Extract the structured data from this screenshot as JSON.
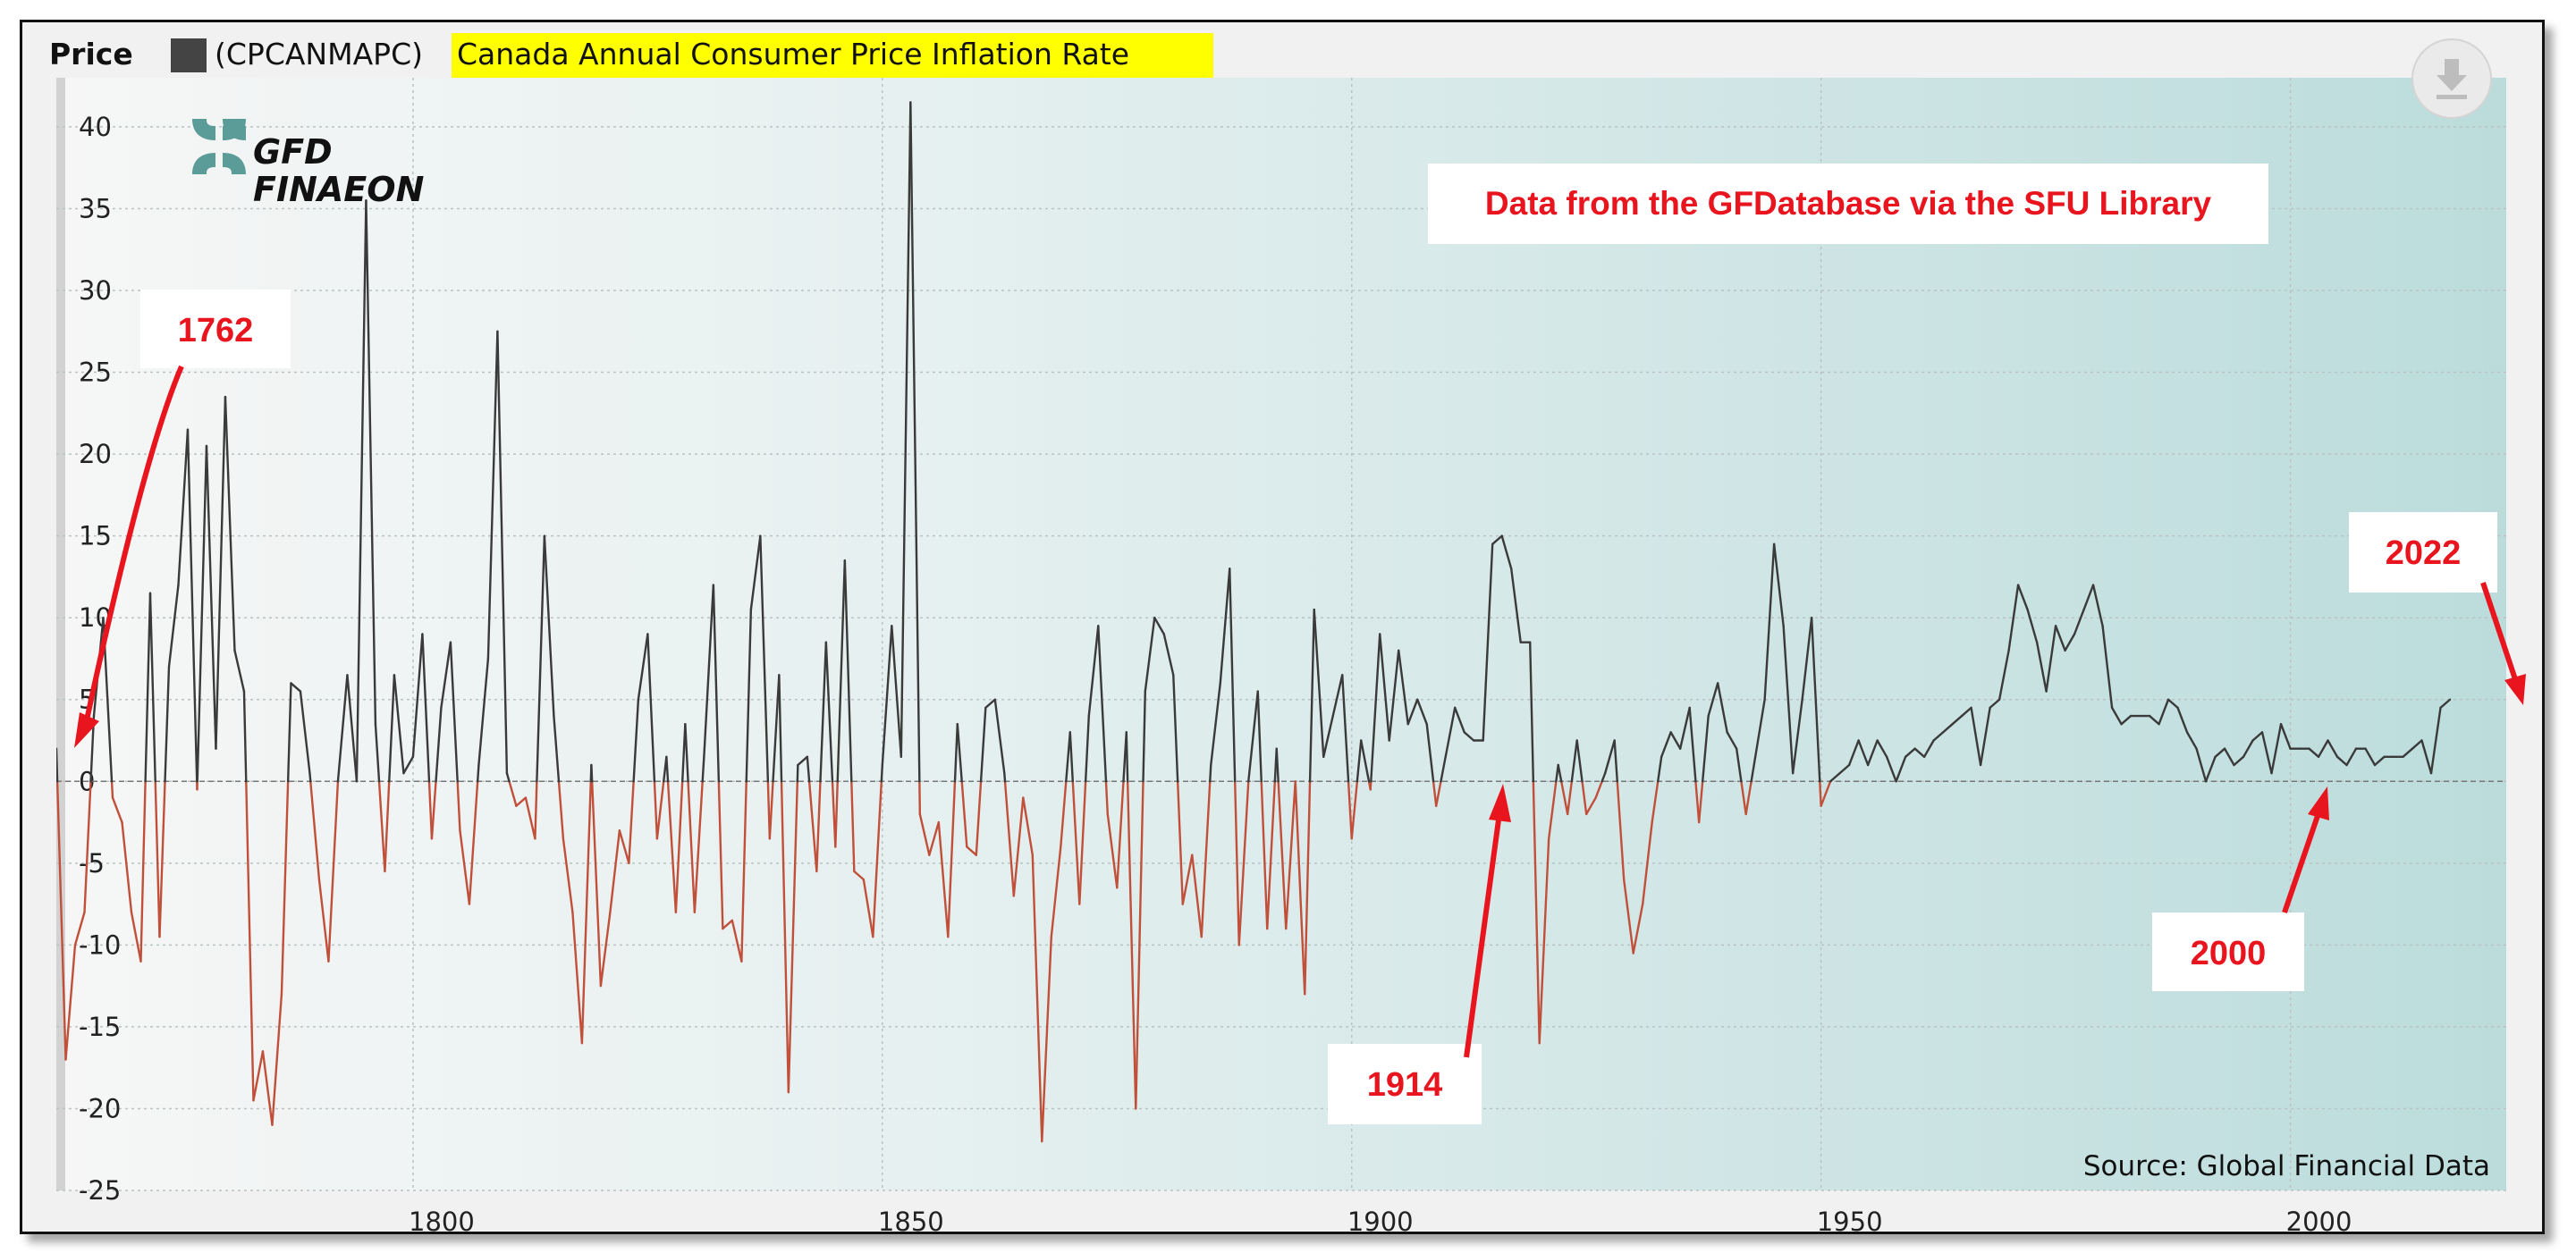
{
  "legend": {
    "title": "Price",
    "ticker": "(CPCANMAPC)",
    "series_name": "Canada Annual Consumer Price Inflation Rate",
    "highlight_color": "#ffff00",
    "swatch_color": "#444444"
  },
  "logo": {
    "line1": "GFD",
    "line2": "FINAEON"
  },
  "source_note": "Source: Global Financial Data",
  "chart_data": {
    "type": "line",
    "title": "Canada Annual Consumer Price Inflation Rate",
    "xlabel": "",
    "ylabel": "",
    "xlim": [
      1762,
      2023
    ],
    "ylim": [
      -25,
      43
    ],
    "xticks": [
      1800,
      1850,
      1900,
      1950,
      2000
    ],
    "yticks": [
      -25,
      -20,
      -15,
      -10,
      -5,
      0,
      5,
      10,
      15,
      20,
      25,
      30,
      35,
      40
    ],
    "colors": {
      "positive": "#3a3a3a",
      "negative": "#c0503a"
    },
    "x_start": 1762,
    "values": [
      2,
      -17,
      -10,
      -8,
      4,
      10,
      -1,
      -2.5,
      -8,
      -11,
      11.5,
      -9.5,
      7,
      12,
      21.5,
      -0.5,
      20.5,
      2,
      23.5,
      8,
      5.5,
      -19.5,
      -16.5,
      -21,
      -13,
      6,
      5.5,
      0.5,
      -6,
      -11,
      0,
      6.5,
      0,
      35.5,
      3.5,
      -5.5,
      6.5,
      0.5,
      1.5,
      9,
      -3.5,
      4.5,
      8.5,
      -3,
      -7.5,
      1,
      7.5,
      27.5,
      0.5,
      -1.5,
      -1,
      -3.5,
      15,
      4,
      -3.5,
      -8,
      -16,
      1,
      -12.5,
      -8,
      -3,
      -5,
      5,
      9,
      -3.5,
      1.5,
      -8,
      3.5,
      -8,
      1.5,
      12,
      -9,
      -8.5,
      -11,
      10.5,
      15,
      -3.5,
      6.5,
      -19,
      1,
      1.5,
      -5.5,
      8.5,
      -4,
      13.5,
      -5.5,
      -6,
      -9.5,
      1,
      9.5,
      1.5,
      41.5,
      -2,
      -4.5,
      -2.5,
      -9.5,
      3.5,
      -4,
      -4.5,
      4.5,
      5,
      0.5,
      -7,
      -1,
      -4.5,
      -22,
      -9.5,
      -4,
      3,
      -7.5,
      4,
      9.5,
      -2,
      -6.5,
      3,
      -20,
      5.5,
      10,
      9,
      6.5,
      -7.5,
      -4.5,
      -9.5,
      1,
      6,
      13,
      -10,
      0,
      5.5,
      -9,
      2,
      -9,
      0,
      -13,
      10.5,
      1.5,
      4,
      6.5,
      -3.5,
      2.5,
      -0.5,
      9,
      2.5,
      8,
      3.5,
      5,
      3.5,
      -1.5,
      1.5,
      4.5,
      3,
      2.5,
      2.5,
      14.5,
      15,
      13,
      8.5,
      8.5,
      -16,
      -3.5,
      1,
      -2,
      2.5,
      -2,
      -1,
      0.5,
      2.5,
      -6,
      -10.5,
      -7.5,
      -2.5,
      1.5,
      3,
      2,
      4.5,
      -2.5,
      4,
      6,
      3,
      2,
      -2,
      1.5,
      5,
      14.5,
      9.5,
      0.5,
      5,
      10,
      -1.5,
      0,
      0.5,
      1,
      2.5,
      1,
      2.5,
      1.5,
      0,
      1.5,
      2,
      1.5,
      2.5,
      3,
      3.5,
      4,
      4.5,
      1,
      4.5,
      5,
      8,
      12,
      10.5,
      8.5,
      5.5,
      9.5,
      8,
      9,
      10.5,
      12,
      9.5,
      4.5,
      3.5,
      4,
      4,
      4,
      3.5,
      5,
      4.5,
      3,
      2,
      0,
      1.5,
      2,
      1,
      1.5,
      2.5,
      3,
      0.5,
      3.5,
      2,
      2,
      2,
      1.5,
      2.5,
      1.5,
      1,
      2,
      2,
      1,
      1.5,
      1.5,
      1.5,
      2,
      2.5,
      0.5,
      4.5,
      5
    ],
    "annotations": [
      {
        "text": "Data from the GFDatabase via the SFU Library"
      },
      {
        "text": "1762"
      },
      {
        "text": "1914"
      },
      {
        "text": "2000"
      },
      {
        "text": "2022"
      }
    ]
  }
}
